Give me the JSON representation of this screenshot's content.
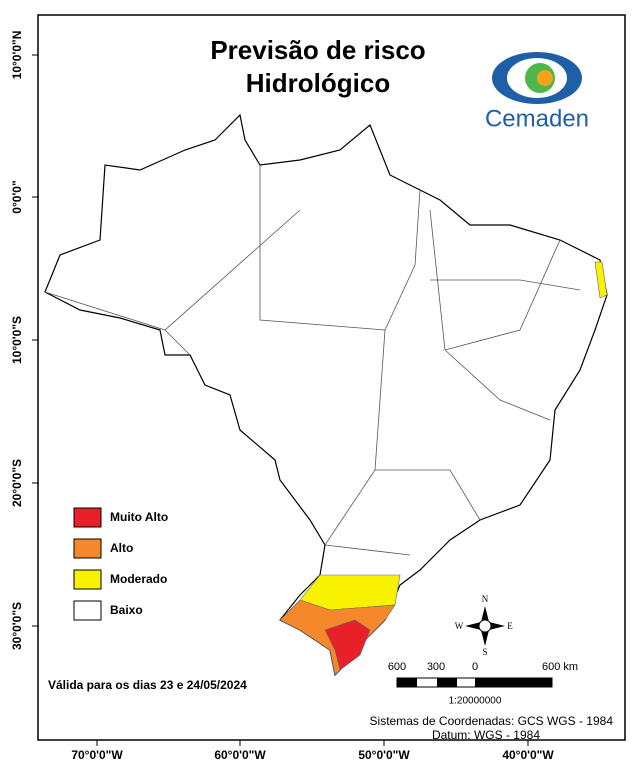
{
  "title": [
    "Previsão de risco",
    "Hidrológico"
  ],
  "logo": "Cemaden",
  "legend": [
    {
      "label": "Muito Alto",
      "color": "#e8202a"
    },
    {
      "label": "Alto",
      "color": "#f5882a"
    },
    {
      "label": "Moderado",
      "color": "#f8f200"
    },
    {
      "label": "Baixo",
      "color": "#ffffff"
    }
  ],
  "validity": "Válida para os dias 23 e 24/05/2024",
  "scale": {
    "labels": [
      "600",
      "300",
      "0",
      "600 km"
    ],
    "ratio": "1:20000000"
  },
  "compass": {
    "n": "N",
    "s": "S",
    "e": "E",
    "w": "W"
  },
  "coordinate_system": [
    "Sistemas de Coordenadas: GCS WGS - 1984",
    "Datum: WGS - 1984"
  ],
  "latitude_labels": [
    "10°0'0\"N",
    "0°0'0\"",
    "10°0'0\"S",
    "20°0'0\"S",
    "30°0'0\"S"
  ],
  "longitude_labels": [
    "70°0'0\"W",
    "60°0'0\"W",
    "50°0'0\"W",
    "40°0'0\"W"
  ]
}
